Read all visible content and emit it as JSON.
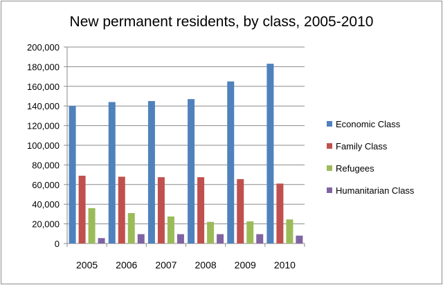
{
  "chart_data": {
    "type": "bar",
    "title": "New permanent residents, by class, 2005-2010",
    "xlabel": "",
    "ylabel": "",
    "categories": [
      "2005",
      "2006",
      "2007",
      "2008",
      "2009",
      "2010"
    ],
    "ylim": [
      0,
      200000
    ],
    "yticks": [
      0,
      20000,
      40000,
      60000,
      80000,
      100000,
      120000,
      140000,
      160000,
      180000,
      200000
    ],
    "ytick_labels": [
      "0",
      "20,000",
      "40,000",
      "60,000",
      "80,000",
      "100,000",
      "120,000",
      "140,000",
      "160,000",
      "180,000",
      "200,000"
    ],
    "grid": true,
    "legend_position": "right",
    "series": [
      {
        "name": "Economic Class",
        "color": "#4f81bd",
        "values": [
          140000,
          144000,
          145000,
          147000,
          165000,
          183000
        ]
      },
      {
        "name": "Family Class",
        "color": "#c0504d",
        "values": [
          69000,
          68000,
          67500,
          67500,
          65500,
          61000
        ]
      },
      {
        "name": "Refugees",
        "color": "#9bbb59",
        "values": [
          36000,
          31000,
          27500,
          22000,
          22500,
          24500
        ]
      },
      {
        "name": "Humanitarian Class",
        "color": "#8064a2",
        "values": [
          5500,
          9500,
          9500,
          9500,
          9500,
          8000
        ]
      }
    ]
  }
}
